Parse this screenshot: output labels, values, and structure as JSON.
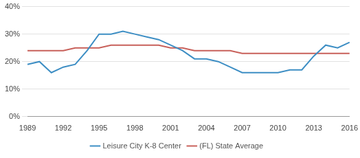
{
  "chart_data": {
    "type": "line",
    "categories": [
      "1989",
      null,
      null,
      "1992",
      null,
      null,
      "1995",
      null,
      null,
      "1998",
      null,
      null,
      "2001",
      null,
      null,
      "2004",
      null,
      null,
      "2007",
      null,
      null,
      "2010",
      null,
      null,
      "2013",
      null,
      null,
      "2016"
    ],
    "series": [
      {
        "name": "Leisure City K-8 Center",
        "color": "#3d8ec4",
        "values": [
          19,
          20,
          16,
          18,
          19,
          24,
          30,
          30,
          31,
          30,
          29,
          28,
          26,
          24,
          21,
          21,
          20,
          18,
          16,
          16,
          16,
          16,
          17,
          17,
          22,
          26,
          25,
          27
        ]
      },
      {
        "name": "(FL) State Average",
        "color": "#c8605a",
        "values": [
          24,
          24,
          24,
          24,
          25,
          25,
          25,
          26,
          26,
          26,
          26,
          26,
          25,
          25,
          24,
          24,
          24,
          24,
          23,
          23,
          23,
          23,
          23,
          23,
          23,
          23,
          23,
          23
        ]
      }
    ],
    "ylim": [
      0,
      40
    ],
    "yticks": [
      {
        "value": 0,
        "label": "0%"
      },
      {
        "value": 10,
        "label": "10%"
      },
      {
        "value": 20,
        "label": "20%"
      },
      {
        "value": 30,
        "label": "30%"
      },
      {
        "value": 40,
        "label": "40%"
      }
    ],
    "grid": true,
    "legend": "bottom"
  }
}
